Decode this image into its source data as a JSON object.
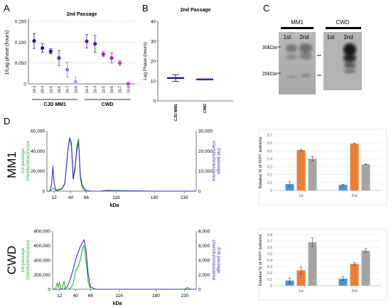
{
  "panels": {
    "A": "A",
    "B": "B",
    "C": "C",
    "D": "D"
  },
  "chart_data": [
    {
      "id": "A",
      "type": "scatter",
      "title": "2nd Passage",
      "ylabel": "1/Lag phase (hours)",
      "ylim": [
        0,
        0.15
      ],
      "yticks": [
        "0",
        "0.050",
        "0.100",
        "0.150"
      ],
      "grid": true,
      "categories": [
        "10-3",
        "10-4",
        "10-5",
        "10-6",
        "10-7",
        "10-8",
        "10-3",
        "10-4",
        "10-5",
        "10-6",
        "10-7",
        "10-8"
      ],
      "values": [
        0.103,
        0.086,
        0.078,
        0.062,
        0.034,
        0.005,
        0.102,
        0.096,
        0.071,
        0.062,
        0.05,
        0.0
      ],
      "errors": [
        0.018,
        0.01,
        0.006,
        0.018,
        0.018,
        0.012,
        0.016,
        0.02,
        0.006,
        0.012,
        0.006,
        0.003
      ],
      "colors": [
        "#1c1a8c",
        "#1c1a8c",
        "#1c1a8c",
        "#3b3fb0",
        "#7d7fe0",
        "#a9a2ee",
        "#5a1a96",
        "#5a1a96",
        "#a01cc0",
        "#a01cc0",
        "#c438d4",
        "#c438d4"
      ],
      "groups": [
        {
          "label": "CJD MM1",
          "from": 0,
          "to": 5
        },
        {
          "label": "CWD",
          "from": 6,
          "to": 11
        }
      ]
    },
    {
      "id": "B",
      "type": "scatter",
      "title": "2nd Passage",
      "ylabel": "Lag Phase (hours)",
      "ylim": [
        0,
        40
      ],
      "yticks": [
        "0",
        "10",
        "20",
        "30",
        "40"
      ],
      "categories": [
        "CJD MM1",
        "CWD"
      ],
      "values": [
        11.5,
        10.8
      ],
      "errors": [
        1.7,
        0.3
      ]
    },
    {
      "id": "C",
      "type": "image",
      "lanes": [
        {
          "label": "MM1",
          "lane_labels": [
            "1st",
            "2nd"
          ]
        },
        {
          "label": "CWD",
          "lane_labels": [
            "1st",
            "2nd"
          ]
        }
      ],
      "markers": [
        "30kDa",
        "20kDa"
      ]
    },
    {
      "id": "D-MM1",
      "type": "line",
      "row_label": "MM1",
      "xlabel": "kDa",
      "xticks": [
        12,
        40,
        66,
        116,
        180,
        230
      ],
      "xlim": [
        0,
        250
      ],
      "ylim_left": [
        0,
        60000
      ],
      "ylim_right": [
        0,
        30000
      ],
      "yticks_left": [
        "0",
        "20,000",
        "40,000",
        "60,000"
      ],
      "yticks_right": [
        "0",
        "10,000",
        "20,000",
        "30,000"
      ],
      "ylabel_left": "1st passage chemiluminescence",
      "ylabel_right": "2nd passage chemiluminescence",
      "series": [
        {
          "name": "1st passage",
          "color": "#2fb32f",
          "axis": "left",
          "x": [
            0,
            5,
            10,
            15,
            20,
            25,
            30,
            35,
            38,
            41,
            44,
            47,
            50,
            53,
            56,
            59,
            62,
            66,
            75,
            100,
            180,
            220,
            250
          ],
          "y": [
            0,
            0,
            3000,
            800,
            1000,
            2000,
            7000,
            40000,
            52000,
            45000,
            12000,
            20000,
            45000,
            52000,
            12000,
            4000,
            1000,
            0,
            0,
            0,
            0,
            0,
            0
          ]
        },
        {
          "name": "2nd passage",
          "color": "#3a2fc2",
          "axis": "right",
          "x": [
            0,
            5,
            8,
            10,
            12,
            15,
            20,
            25,
            30,
            35,
            38,
            41,
            44,
            47,
            50,
            53,
            56,
            59,
            62,
            66,
            75,
            90,
            100,
            180,
            220,
            250
          ],
          "y": [
            0,
            0,
            4000,
            12500,
            4000,
            500,
            800,
            1200,
            4000,
            20000,
            26500,
            24000,
            6000,
            12000,
            20000,
            24500,
            8000,
            3000,
            1500,
            200,
            0,
            0,
            400,
            0,
            0,
            0
          ]
        }
      ]
    },
    {
      "id": "D-CWD",
      "type": "line",
      "row_label": "CWD",
      "xlabel": "kDa",
      "xticks": [
        12,
        40,
        66,
        116,
        180,
        230
      ],
      "xlim": [
        0,
        250
      ],
      "ylim_left": [
        0,
        800000
      ],
      "ylim_right": [
        0,
        8000
      ],
      "yticks_left": [
        "0",
        "200,000",
        "400,000",
        "600,000",
        "800,000"
      ],
      "yticks_right": [
        "0",
        "2,000",
        "4,000",
        "6,000",
        "8,000"
      ],
      "ylabel_left": "1st passage chemiluminescence",
      "ylabel_right": "2nd passage chemiluminescence",
      "series": [
        {
          "name": "1st passage",
          "color": "#2fb32f",
          "axis": "left",
          "x": [
            0,
            5,
            8,
            10,
            12,
            14,
            16,
            20,
            22,
            25,
            28,
            32,
            36,
            40,
            44,
            48,
            52,
            55,
            58,
            62,
            66,
            75,
            100,
            200,
            230,
            235,
            240,
            250
          ],
          "y": [
            0,
            5000,
            90000,
            20000,
            100000,
            10000,
            0,
            110000,
            5000,
            0,
            5000,
            20000,
            80000,
            250000,
            300000,
            400000,
            560000,
            600000,
            400000,
            100000,
            0,
            0,
            0,
            0,
            0,
            25000,
            0,
            0
          ]
        },
        {
          "name": "2nd passage",
          "color": "#3a2fc2",
          "axis": "right",
          "x": [
            0,
            20,
            25,
            30,
            35,
            40,
            44,
            48,
            52,
            55,
            58,
            62,
            66,
            75,
            100,
            250
          ],
          "y": [
            0,
            0,
            300,
            1200,
            2500,
            4000,
            5000,
            5800,
            6400,
            6800,
            5500,
            2000,
            300,
            0,
            0,
            0
          ]
        }
      ]
    },
    {
      "id": "D-bar-MM1",
      "type": "bar",
      "ylabel": "Relative % of PrPˢᶜ isoforms",
      "ylim": [
        0,
        0.7
      ],
      "yticks": [
        "0",
        "0.1",
        "0.2",
        "0.3",
        "0.4",
        "0.5",
        "0.6",
        "0.7"
      ],
      "categories": [
        "1st",
        "2nd"
      ],
      "series": [
        {
          "color": "#4e93cf",
          "values": [
            0.08,
            0.07
          ],
          "errors": [
            0.03,
            0.005
          ]
        },
        {
          "color": "#ee7d31",
          "values": [
            0.51,
            0.59
          ],
          "errors": [
            0.01,
            0.005
          ]
        },
        {
          "color": "#a4a4a4",
          "values": [
            0.4,
            0.33
          ],
          "errors": [
            0.03,
            0.005
          ]
        }
      ]
    },
    {
      "id": "D-bar-CWD",
      "type": "bar",
      "ylabel": "Relative % of PrPˢᶜ isoforms",
      "ylim": [
        0,
        0.8
      ],
      "yticks": [
        "0",
        "0.1",
        "0.2",
        "0.3",
        "0.4",
        "0.5",
        "0.6",
        "0.7",
        "0.8"
      ],
      "categories": [
        "1st",
        "2nd"
      ],
      "series": [
        {
          "color": "#4e93cf",
          "values": [
            0.08,
            0.11
          ],
          "errors": [
            0.04,
            0.03
          ]
        },
        {
          "color": "#ee7d31",
          "values": [
            0.24,
            0.34
          ],
          "errors": [
            0.06,
            0.02
          ]
        },
        {
          "color": "#a4a4a4",
          "values": [
            0.68,
            0.55
          ],
          "errors": [
            0.07,
            0.03
          ]
        }
      ]
    }
  ]
}
